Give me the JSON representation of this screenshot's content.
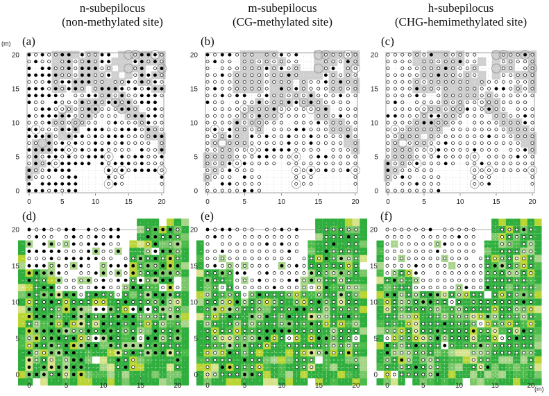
{
  "titles": [
    {
      "line1": "n-subepilocus",
      "line2": "(non-methylated site)"
    },
    {
      "line1": "m-subepilocus",
      "line2": "(CG-methylated site)"
    },
    {
      "line1": "h-subepilocus",
      "line2": "(CHG-hemimethylated site)"
    }
  ],
  "panel_labels": [
    "(a)",
    "(b)",
    "(c)",
    "(d)",
    "(e)",
    "(f)"
  ],
  "unit_label": "(m)",
  "chart_data": [
    {
      "panel": "(a)",
      "type": "scatter",
      "xlim": [
        0,
        20
      ],
      "ylim": [
        0,
        20
      ],
      "xticks": [
        0,
        5,
        10,
        15,
        20
      ],
      "yticks": [
        0,
        5,
        10,
        15,
        20
      ],
      "background": "gray canopy map",
      "marker_filled": "#000000",
      "marker_open": "#ffffff",
      "filled_fraction": 0.55,
      "seed": 11
    },
    {
      "panel": "(b)",
      "type": "scatter",
      "xlim": [
        0,
        20
      ],
      "ylim": [
        0,
        20
      ],
      "xticks": [
        0,
        5,
        10,
        15,
        20
      ],
      "yticks": [
        0,
        5,
        10,
        15,
        20
      ],
      "background": "gray canopy map",
      "marker_filled": "#000000",
      "marker_open": "#ffffff",
      "filled_fraction": 0.14,
      "seed": 23
    },
    {
      "panel": "(c)",
      "type": "scatter",
      "xlim": [
        0,
        20
      ],
      "ylim": [
        0,
        20
      ],
      "xticks": [
        0,
        5,
        10,
        15,
        20
      ],
      "yticks": [
        0,
        5,
        10,
        15,
        20
      ],
      "background": "gray canopy map",
      "marker_filled": "#000000",
      "marker_open": "#ffffff",
      "filled_fraction": 0.09,
      "seed": 37
    },
    {
      "panel": "(d)",
      "type": "scatter",
      "xlim": [
        0,
        20
      ],
      "ylim": [
        0,
        20
      ],
      "xticks": [
        0,
        5,
        10,
        15,
        20
      ],
      "yticks": [
        0,
        5,
        10,
        15,
        20
      ],
      "background": "green vegetation grid",
      "marker_filled": "#000000",
      "marker_open": "#ffffff",
      "filled_fraction": 0.55,
      "seed": 11
    },
    {
      "panel": "(e)",
      "type": "scatter",
      "xlim": [
        0,
        20
      ],
      "ylim": [
        0,
        20
      ],
      "xticks": [
        0,
        5,
        10,
        15,
        20
      ],
      "yticks": [
        0,
        5,
        10,
        15,
        20
      ],
      "background": "green vegetation grid",
      "marker_filled": "#000000",
      "marker_open": "#ffffff",
      "filled_fraction": 0.14,
      "seed": 23
    },
    {
      "panel": "(f)",
      "type": "scatter",
      "xlim": [
        0,
        20
      ],
      "ylim": [
        0,
        20
      ],
      "xticks": [
        0,
        5,
        10,
        15,
        20
      ],
      "yticks": [
        0,
        5,
        10,
        15,
        20
      ],
      "background": "green vegetation grid",
      "marker_filled": "#000000",
      "marker_open": "#ffffff",
      "filled_fraction": 0.09,
      "seed": 37
    }
  ],
  "colors": {
    "gray_canopy": "#cfcfcf",
    "green_palette": [
      "#2fae3e",
      "#4cbb4a",
      "#7bc86a",
      "#a7d58a",
      "#b9d534",
      "#d6e38a",
      "#ffffff"
    ],
    "axis": "#8a8a8a",
    "grid": "#e2e2e2",
    "big_circle": "#8a8a8a"
  }
}
